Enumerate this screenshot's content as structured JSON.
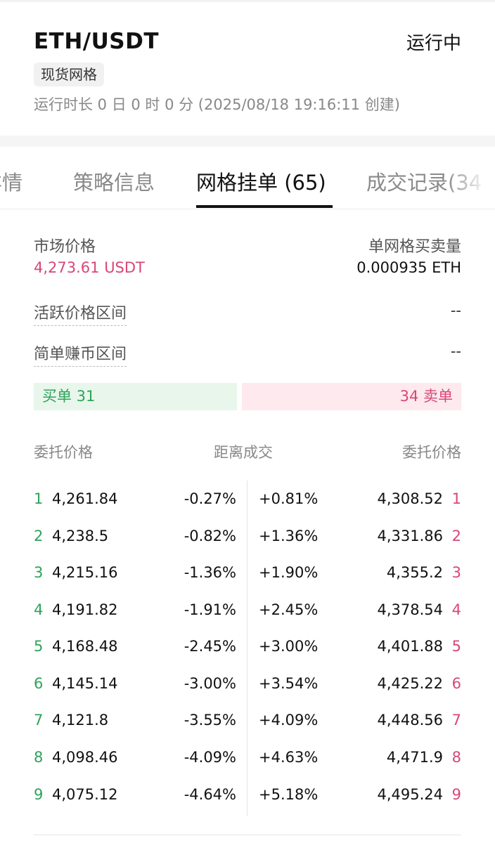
{
  "header": {
    "pair": "ETH/USDT",
    "status": "运行中",
    "tag": "现货网格",
    "runtime": "运行时长 0 日 0 时 0 分 (2025/08/18 19:16:11 创建)"
  },
  "tabs": [
    {
      "label": "详情"
    },
    {
      "label": "策略信息"
    },
    {
      "label": "网格挂单 (65)",
      "active": true
    },
    {
      "label": "成交记录(34"
    }
  ],
  "info": {
    "market_price_label": "市场价格",
    "market_price_value": "4,273.61 USDT",
    "qty_label": "单网格买卖量",
    "qty_value": "0.000935 ETH",
    "active_range_label": "活跃价格区间",
    "active_range_value": "--",
    "profit_range_label": "简单赚币区间",
    "profit_range_value": "--"
  },
  "summary": {
    "buy_label": "买单 31",
    "sell_label": "34 卖单"
  },
  "table": {
    "headers": [
      "委托价格",
      "距离成交",
      "委托价格"
    ],
    "rows": [
      {
        "n": "1",
        "buy_price": "4,261.84",
        "buy_dist": "-0.27%",
        "sell_dist": "+0.81%",
        "sell_price": "4,308.52"
      },
      {
        "n": "2",
        "buy_price": "4,238.5",
        "buy_dist": "-0.82%",
        "sell_dist": "+1.36%",
        "sell_price": "4,331.86"
      },
      {
        "n": "3",
        "buy_price": "4,215.16",
        "buy_dist": "-1.36%",
        "sell_dist": "+1.90%",
        "sell_price": "4,355.2"
      },
      {
        "n": "4",
        "buy_price": "4,191.82",
        "buy_dist": "-1.91%",
        "sell_dist": "+2.45%",
        "sell_price": "4,378.54"
      },
      {
        "n": "5",
        "buy_price": "4,168.48",
        "buy_dist": "-2.45%",
        "sell_dist": "+3.00%",
        "sell_price": "4,401.88"
      },
      {
        "n": "6",
        "buy_price": "4,145.14",
        "buy_dist": "-3.00%",
        "sell_dist": "+3.54%",
        "sell_price": "4,425.22"
      },
      {
        "n": "7",
        "buy_price": "4,121.8",
        "buy_dist": "-3.55%",
        "sell_dist": "+4.09%",
        "sell_price": "4,448.56"
      },
      {
        "n": "8",
        "buy_price": "4,098.46",
        "buy_dist": "-4.09%",
        "sell_dist": "+4.63%",
        "sell_price": "4,471.9"
      },
      {
        "n": "9",
        "buy_price": "4,075.12",
        "buy_dist": "-4.64%",
        "sell_dist": "+5.18%",
        "sell_price": "4,495.24"
      }
    ]
  },
  "colors": {
    "buy": "#2ea35a",
    "sell": "#d9467a",
    "buy_bg": "#e8f6ec",
    "sell_bg": "#fde9ee"
  }
}
